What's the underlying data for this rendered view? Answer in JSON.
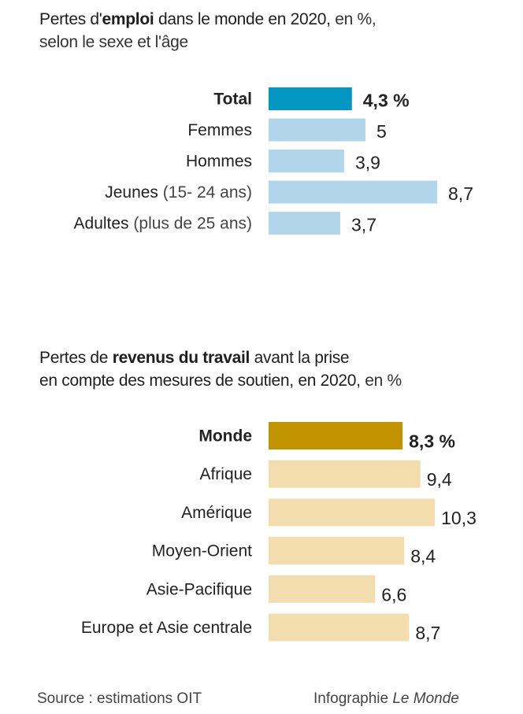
{
  "chart_data": [
    {
      "type": "bar",
      "orientation": "horizontal",
      "title": {
        "parts": [
          {
            "text": "Pertes d'",
            "weight": "normal"
          },
          {
            "text": "emploi",
            "weight": "bold"
          },
          {
            "text": " dans le monde en 2020,",
            "weight": "normal"
          },
          {
            "text": " en %,",
            "weight": "light"
          }
        ],
        "line2": "selon le sexe et l'âge",
        "full": "Pertes d'emploi dans le monde en 2020, en %, selon le sexe et l'âge"
      },
      "categories": [
        {
          "label": "Total",
          "sub": "",
          "highlight": true
        },
        {
          "label": "Femmes",
          "sub": "",
          "highlight": false
        },
        {
          "label": "Hommes",
          "sub": "",
          "highlight": false
        },
        {
          "label": "Jeunes",
          "sub": " (15- 24 ans)",
          "highlight": false
        },
        {
          "label": "Adultes",
          "sub": " (plus de 25 ans)",
          "highlight": false
        }
      ],
      "values": [
        4.3,
        5,
        3.9,
        8.7,
        3.7
      ],
      "value_labels": [
        "4,3 %",
        "5",
        "3,9",
        "8,7",
        "3,7"
      ],
      "xlabel": "",
      "ylabel": "",
      "xlim": [
        0,
        11
      ],
      "grid": false,
      "legend": "none",
      "colors": {
        "highlight": "#0396c2",
        "normal": "#b1d6ec"
      }
    },
    {
      "type": "bar",
      "orientation": "horizontal",
      "title": {
        "parts": [
          {
            "text": "Pertes de ",
            "weight": "normal"
          },
          {
            "text": "revenus du travail",
            "weight": "bold"
          },
          {
            "text": " avant la prise",
            "weight": "normal"
          }
        ],
        "line2_parts": [
          {
            "text": "en compte des mesures de soutien, en 2020,",
            "weight": "normal"
          },
          {
            "text": " en %",
            "weight": "light"
          }
        ],
        "full": "Pertes de revenus du travail avant la prise en compte des mesures de soutien, en 2020, en %"
      },
      "categories": [
        {
          "label": "Monde",
          "sub": "",
          "highlight": true
        },
        {
          "label": "Afrique",
          "sub": "",
          "highlight": false
        },
        {
          "label": "Amérique",
          "sub": "",
          "highlight": false
        },
        {
          "label": "Moyen-Orient",
          "sub": "",
          "highlight": false
        },
        {
          "label": "Asie-Pacifique",
          "sub": "",
          "highlight": false
        },
        {
          "label": "Europe et Asie centrale",
          "sub": "",
          "highlight": false
        }
      ],
      "values": [
        8.3,
        9.4,
        10.3,
        8.4,
        6.6,
        8.7
      ],
      "value_labels": [
        "8,3 %",
        "9,4",
        "10,3",
        "8,4",
        "6,6",
        "8,7"
      ],
      "xlabel": "",
      "ylabel": "",
      "xlim": [
        0,
        13
      ],
      "grid": false,
      "legend": "none",
      "colors": {
        "highlight": "#c19300",
        "normal": "#f3ddae"
      }
    }
  ],
  "footer": {
    "source": "Source : estimations OIT",
    "credit_prefix": "Infographie ",
    "credit_brand": "Le Monde"
  }
}
